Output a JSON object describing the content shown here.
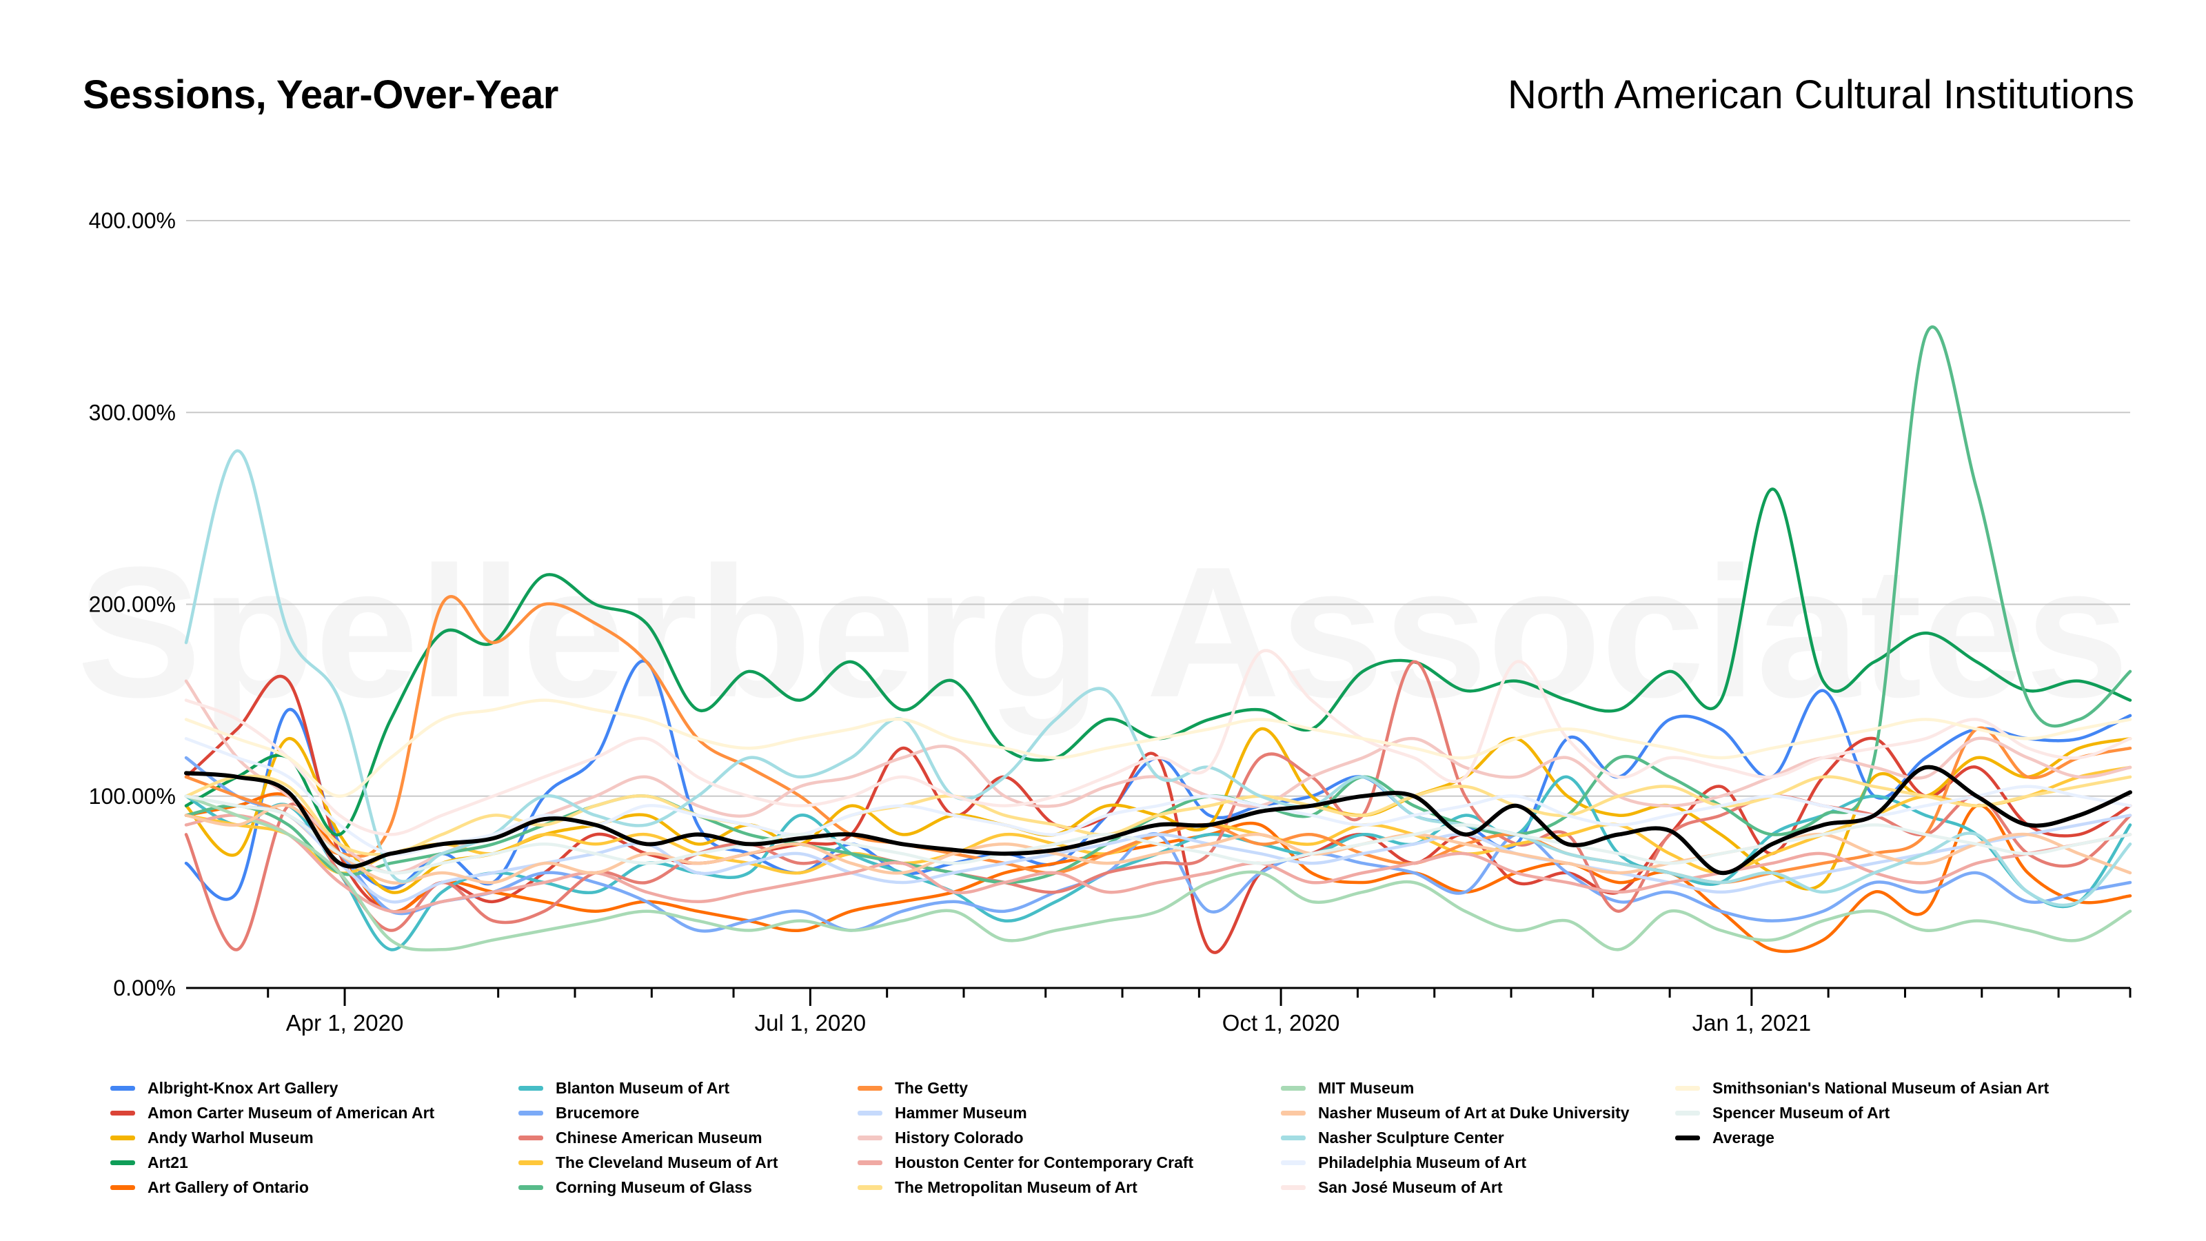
{
  "header": {
    "title": "Sessions, Year-Over-Year",
    "subtitle": "North American Cultural Institutions"
  },
  "watermark": "Spellerberg Associates",
  "chart_data": {
    "type": "line",
    "title": "Sessions, Year-Over-Year",
    "xlabel": "",
    "ylabel": "",
    "ylim": [
      0,
      400
    ],
    "yticks": [
      0,
      100,
      200,
      300,
      400
    ],
    "ytick_labels": [
      "0.00%",
      "100.00%",
      "200.00%",
      "300.00%",
      "400.00%"
    ],
    "xlim": [
      0,
      380
    ],
    "xtick_labels": [
      {
        "day": 31,
        "label": "Apr 1, 2020"
      },
      {
        "day": 122,
        "label": "Jul 1, 2020"
      },
      {
        "day": 214,
        "label": "Oct 1, 2020"
      },
      {
        "day": 306,
        "label": "Jan 1, 2021"
      }
    ],
    "minor_tick_days": [
      16,
      61,
      76,
      91,
      107,
      137,
      152,
      168,
      183,
      198,
      229,
      244,
      259,
      275,
      290,
      321,
      336,
      351,
      366,
      380
    ],
    "legend_position": "bottom",
    "grid": true,
    "x": [
      0,
      10,
      20,
      30,
      40,
      50,
      60,
      70,
      80,
      90,
      100,
      110,
      120,
      130,
      140,
      150,
      160,
      170,
      180,
      190,
      200,
      210,
      220,
      230,
      240,
      250,
      260,
      270,
      280,
      290,
      300,
      310,
      320,
      330,
      340,
      350,
      360,
      370,
      380
    ],
    "series": [
      {
        "name": "Albright-Knox Art Gallery",
        "color": "#4285F4",
        "values": [
          65,
          50,
          145,
          75,
          52,
          70,
          55,
          100,
          120,
          170,
          85,
          70,
          60,
          75,
          60,
          65,
          70,
          65,
          90,
          120,
          90,
          95,
          100,
          110,
          90,
          85,
          75,
          130,
          110,
          140,
          135,
          110,
          155,
          100,
          120,
          135,
          130,
          130,
          142
        ]
      },
      {
        "name": "Amon Carter Museum of American Art",
        "color": "#DB4437",
        "values": [
          110,
          135,
          160,
          70,
          40,
          55,
          45,
          60,
          80,
          70,
          65,
          70,
          75,
          80,
          125,
          90,
          110,
          85,
          90,
          120,
          20,
          60,
          70,
          80,
          65,
          80,
          55,
          60,
          50,
          80,
          105,
          70,
          110,
          130,
          100,
          115,
          85,
          80,
          95
        ]
      },
      {
        "name": "Andy Warhol Museum",
        "color": "#F4B400",
        "values": [
          95,
          70,
          130,
          80,
          50,
          65,
          70,
          80,
          85,
          90,
          75,
          85,
          75,
          95,
          80,
          90,
          85,
          80,
          95,
          90,
          85,
          135,
          100,
          90,
          100,
          110,
          130,
          100,
          90,
          95,
          80,
          60,
          55,
          110,
          100,
          120,
          110,
          125,
          130
        ]
      },
      {
        "name": "Art21",
        "color": "#0F9D58",
        "values": [
          95,
          110,
          120,
          80,
          140,
          185,
          180,
          215,
          200,
          190,
          145,
          165,
          150,
          170,
          145,
          160,
          125,
          120,
          140,
          130,
          140,
          145,
          135,
          165,
          170,
          155,
          160,
          150,
          145,
          165,
          150,
          260,
          160,
          170,
          185,
          170,
          155,
          160,
          150
        ]
      },
      {
        "name": "Art Gallery of Ontario",
        "color": "#FF6D01",
        "values": [
          90,
          95,
          100,
          70,
          40,
          55,
          50,
          45,
          40,
          45,
          40,
          35,
          30,
          40,
          45,
          50,
          60,
          65,
          70,
          75,
          80,
          85,
          60,
          55,
          60,
          50,
          60,
          65,
          55,
          60,
          40,
          20,
          25,
          50,
          40,
          95,
          60,
          45,
          48
        ]
      },
      {
        "name": "Blanton Museum of Art",
        "color": "#46BDC6",
        "values": [
          100,
          85,
          95,
          60,
          20,
          50,
          60,
          55,
          50,
          65,
          60,
          60,
          90,
          70,
          60,
          50,
          35,
          45,
          60,
          70,
          80,
          75,
          70,
          80,
          75,
          90,
          80,
          110,
          70,
          60,
          55,
          80,
          90,
          100,
          90,
          80,
          50,
          45,
          85
        ]
      },
      {
        "name": "Brucemore",
        "color": "#7BAAF7",
        "values": [
          120,
          100,
          90,
          70,
          40,
          45,
          50,
          60,
          55,
          45,
          30,
          35,
          40,
          30,
          40,
          45,
          40,
          50,
          60,
          80,
          40,
          60,
          70,
          65,
          60,
          50,
          80,
          60,
          45,
          50,
          40,
          35,
          40,
          55,
          50,
          60,
          45,
          50,
          55
        ]
      },
      {
        "name": "Chinese American Museum",
        "color": "#E67C73",
        "values": [
          80,
          20,
          95,
          60,
          30,
          55,
          35,
          40,
          60,
          55,
          70,
          75,
          65,
          70,
          65,
          60,
          55,
          50,
          60,
          65,
          70,
          120,
          110,
          90,
          170,
          100,
          75,
          80,
          40,
          80,
          90,
          100,
          95,
          90,
          80,
          100,
          70,
          65,
          90
        ]
      },
      {
        "name": "The Cleveland Museum of Art",
        "color": "#FFC73A",
        "values": [
          90,
          85,
          80,
          60,
          70,
          75,
          70,
          80,
          75,
          80,
          70,
          65,
          60,
          70,
          65,
          70,
          80,
          75,
          70,
          80,
          85,
          80,
          75,
          85,
          80,
          70,
          75,
          80,
          85,
          70,
          60,
          70,
          80,
          90,
          100,
          95,
          100,
          110,
          115
        ]
      },
      {
        "name": "Corning Museum of Glass",
        "color": "#57BB8A",
        "values": [
          90,
          95,
          85,
          60,
          65,
          70,
          75,
          85,
          95,
          100,
          90,
          80,
          75,
          70,
          65,
          60,
          55,
          60,
          75,
          90,
          100,
          95,
          90,
          110,
          95,
          85,
          80,
          90,
          120,
          110,
          95,
          80,
          90,
          120,
          340,
          260,
          150,
          140,
          165
        ]
      },
      {
        "name": "The Getty",
        "color": "#FF8F3E",
        "values": [
          110,
          100,
          90,
          70,
          85,
          200,
          180,
          200,
          190,
          170,
          130,
          115,
          100,
          80,
          75,
          70,
          65,
          60,
          70,
          80,
          85,
          75,
          80,
          70,
          65,
          75,
          80,
          70,
          65,
          60,
          55,
          60,
          65,
          70,
          80,
          135,
          110,
          120,
          125
        ]
      },
      {
        "name": "Hammer Museum",
        "color": "#C6DAFC",
        "values": [
          100,
          95,
          90,
          65,
          45,
          55,
          60,
          65,
          70,
          75,
          60,
          65,
          70,
          60,
          55,
          60,
          65,
          70,
          75,
          80,
          75,
          70,
          65,
          70,
          75,
          80,
          70,
          65,
          60,
          55,
          50,
          55,
          60,
          65,
          70,
          75,
          80,
          85,
          90
        ]
      },
      {
        "name": "History Colorado",
        "color": "#F4C7C3",
        "values": [
          160,
          120,
          100,
          75,
          60,
          70,
          80,
          90,
          100,
          110,
          95,
          90,
          105,
          110,
          120,
          125,
          100,
          95,
          105,
          110,
          100,
          95,
          110,
          120,
          130,
          115,
          110,
          120,
          100,
          95,
          100,
          110,
          120,
          115,
          110,
          130,
          120,
          110,
          115
        ]
      },
      {
        "name": "Houston Center for Contemporary Craft",
        "color": "#F0A9A3",
        "values": [
          85,
          90,
          80,
          55,
          40,
          45,
          50,
          55,
          60,
          50,
          45,
          50,
          55,
          60,
          65,
          50,
          55,
          60,
          50,
          55,
          60,
          65,
          55,
          60,
          65,
          70,
          60,
          55,
          50,
          55,
          60,
          65,
          70,
          60,
          55,
          65,
          70,
          75,
          80
        ]
      },
      {
        "name": "The Metropolitan Museum of Art",
        "color": "#FFE08A",
        "values": [
          100,
          110,
          105,
          75,
          70,
          80,
          90,
          85,
          95,
          100,
          90,
          85,
          80,
          90,
          95,
          100,
          90,
          85,
          80,
          90,
          95,
          100,
          95,
          90,
          100,
          105,
          95,
          90,
          100,
          105,
          95,
          100,
          110,
          105,
          100,
          95,
          100,
          105,
          110
        ]
      },
      {
        "name": "MIT Museum",
        "color": "#A8DAB5",
        "values": [
          100,
          90,
          80,
          60,
          25,
          20,
          25,
          30,
          35,
          40,
          35,
          30,
          35,
          30,
          35,
          40,
          25,
          30,
          35,
          40,
          55,
          60,
          45,
          50,
          55,
          40,
          30,
          35,
          20,
          40,
          30,
          25,
          35,
          40,
          30,
          35,
          30,
          25,
          40
        ]
      },
      {
        "name": "Nasher Museum of Art at Duke University",
        "color": "#FCC8A2",
        "values": [
          90,
          85,
          95,
          70,
          55,
          60,
          55,
          65,
          60,
          70,
          65,
          70,
          75,
          65,
          60,
          70,
          75,
          70,
          65,
          70,
          75,
          80,
          70,
          75,
          80,
          75,
          70,
          65,
          60,
          65,
          70,
          75,
          80,
          70,
          65,
          75,
          80,
          70,
          60
        ]
      },
      {
        "name": "Nasher Sculpture Center",
        "color": "#A3DDE3",
        "values": [
          180,
          280,
          185,
          150,
          60,
          70,
          80,
          100,
          90,
          85,
          100,
          120,
          110,
          120,
          140,
          100,
          110,
          140,
          155,
          110,
          115,
          100,
          95,
          110,
          90,
          85,
          80,
          70,
          65,
          60,
          55,
          60,
          50,
          60,
          70,
          80,
          50,
          45,
          75
        ]
      },
      {
        "name": "Philadelphia Museum of Art",
        "color": "#E8F0FE",
        "values": [
          130,
          120,
          110,
          85,
          70,
          75,
          80,
          90,
          85,
          95,
          90,
          85,
          80,
          90,
          95,
          90,
          85,
          80,
          90,
          95,
          100,
          95,
          90,
          85,
          90,
          95,
          100,
          90,
          85,
          90,
          95,
          100,
          95,
          90,
          95,
          100,
          105,
          100,
          95
        ]
      },
      {
        "name": "San José Museum of Art",
        "color": "#FCE8E6",
        "values": [
          150,
          140,
          120,
          90,
          80,
          90,
          100,
          110,
          120,
          130,
          110,
          100,
          95,
          100,
          110,
          100,
          95,
          100,
          110,
          120,
          115,
          175,
          150,
          130,
          120,
          110,
          170,
          130,
          110,
          120,
          115,
          110,
          120,
          125,
          130,
          140,
          125,
          120,
          130
        ]
      },
      {
        "name": "Smithsonian's National Museum of Asian Art",
        "color": "#FFF4D6",
        "values": [
          140,
          130,
          120,
          100,
          120,
          140,
          145,
          150,
          145,
          140,
          130,
          125,
          130,
          135,
          140,
          130,
          125,
          120,
          125,
          130,
          135,
          140,
          135,
          130,
          125,
          120,
          130,
          135,
          130,
          125,
          120,
          125,
          130,
          135,
          140,
          135,
          130,
          135,
          140
        ]
      },
      {
        "name": "Spencer Museum of Art",
        "color": "#E6F2F0",
        "values": [
          100,
          95,
          90,
          70,
          60,
          65,
          70,
          75,
          70,
          65,
          70,
          75,
          80,
          75,
          70,
          65,
          70,
          75,
          80,
          75,
          70,
          65,
          70,
          75,
          80,
          85,
          80,
          75,
          70,
          65,
          70,
          75,
          80,
          85,
          80,
          75,
          70,
          75,
          80
        ]
      },
      {
        "name": "Average",
        "color": "#000000",
        "values": [
          112,
          110,
          102,
          65,
          70,
          75,
          78,
          88,
          85,
          75,
          80,
          75,
          78,
          80,
          75,
          72,
          70,
          72,
          78,
          85,
          85,
          92,
          95,
          100,
          100,
          80,
          95,
          75,
          80,
          82,
          60,
          75,
          85,
          90,
          115,
          100,
          85,
          90,
          102
        ]
      }
    ]
  }
}
